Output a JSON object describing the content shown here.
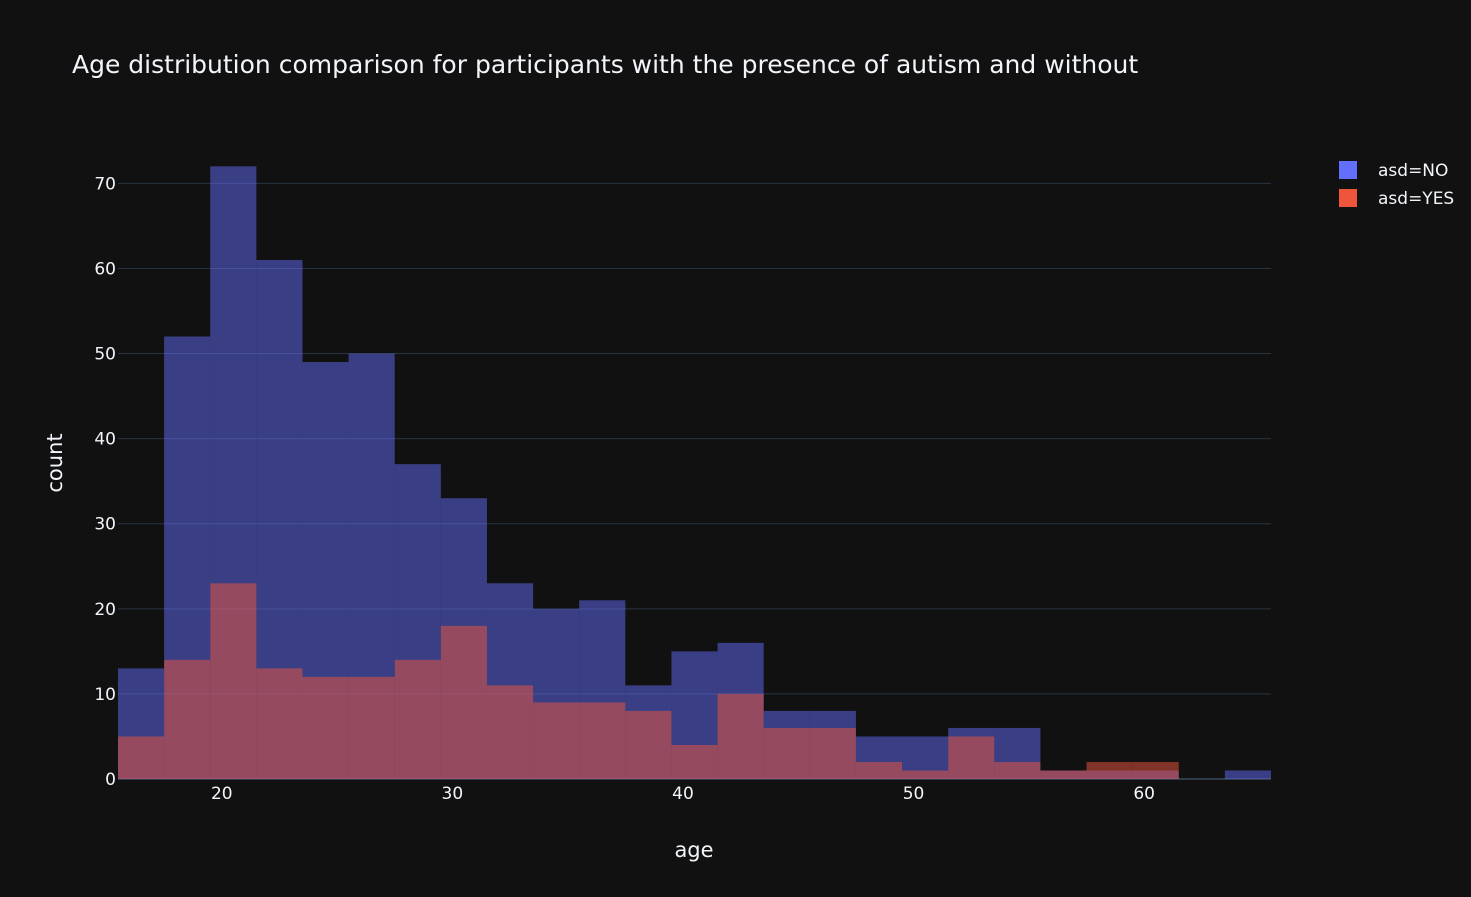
{
  "chart_data": {
    "type": "bar",
    "subtype": "overlaid-histogram",
    "title": "Age distribution comparison for participants with the presence of autism and without",
    "xlabel": "age",
    "ylabel": "count",
    "xlim": [
      15.5,
      65.5
    ],
    "ylim": [
      0,
      75.8
    ],
    "xticks": [
      20,
      30,
      40,
      50,
      60
    ],
    "yticks": [
      0,
      10,
      20,
      30,
      40,
      50,
      60,
      70
    ],
    "bin_size": 2,
    "bin_starts": [
      15.5,
      17.5,
      19.5,
      21.5,
      23.5,
      25.5,
      27.5,
      29.5,
      31.5,
      33.5,
      35.5,
      37.5,
      39.5,
      41.5,
      43.5,
      45.5,
      47.5,
      49.5,
      51.5,
      53.5,
      55.5,
      57.5,
      59.5,
      61.5,
      63.5
    ],
    "grid": true,
    "legend_position": "top-right",
    "bar_opacity": 0.5,
    "series": [
      {
        "name": "asd=NO",
        "color": "#636efa",
        "values": [
          13,
          52,
          72,
          61,
          49,
          50,
          37,
          33,
          23,
          20,
          21,
          11,
          15,
          16,
          8,
          8,
          5,
          5,
          6,
          6,
          1,
          1,
          1,
          0,
          1
        ]
      },
      {
        "name": "asd=YES",
        "color": "#ef553b",
        "values": [
          5,
          14,
          23,
          13,
          12,
          12,
          14,
          18,
          11,
          9,
          9,
          8,
          4,
          10,
          6,
          6,
          2,
          1,
          5,
          2,
          1,
          2,
          2,
          0,
          0
        ]
      }
    ]
  },
  "colors": {
    "background": "#111111",
    "grid": "#283442",
    "text": "#f2f5fa"
  }
}
